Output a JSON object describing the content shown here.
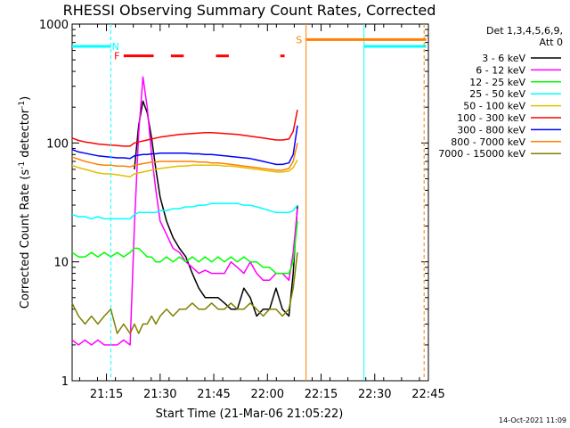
{
  "chart_data": {
    "type": "line",
    "title": "RHESSI Observing Summary Count Rates, Corrected",
    "xlabel": "Start Time (21-Mar-06 21:05:22)",
    "ylabel_main": "Corrected Count Rate (s",
    "ylabel_sup1": "-1",
    "ylabel_mid": " detector",
    "ylabel_sup2": "-1",
    "ylabel_end": ")",
    "y_scale": "log",
    "ylim": [
      1,
      1000
    ],
    "xlim": [
      21.09,
      22.75
    ],
    "x_ticks": [
      {
        "x": 21.25,
        "label": "21:15"
      },
      {
        "x": 21.5,
        "label": "21:30"
      },
      {
        "x": 21.75,
        "label": "21:45"
      },
      {
        "x": 22.0,
        "label": "22:00"
      },
      {
        "x": 22.25,
        "label": "22:15"
      },
      {
        "x": 22.5,
        "label": "22:30"
      },
      {
        "x": 22.75,
        "label": "22:45"
      }
    ],
    "y_ticks": [
      {
        "y": 1,
        "label": "1"
      },
      {
        "y": 10,
        "label": "10"
      },
      {
        "y": 100,
        "label": "100"
      },
      {
        "y": 1000,
        "label": "1000"
      }
    ],
    "legend_header": [
      "Det 1,3,4,5,6,9,",
      "Att 0"
    ],
    "series": [
      {
        "name": "3 - 6 keV",
        "color": "#000000",
        "x": [
          21.09,
          21.12,
          21.15,
          21.18,
          21.21,
          21.24,
          21.27,
          21.3,
          21.33,
          21.36,
          21.38,
          21.4,
          21.42,
          21.44,
          21.46,
          21.48,
          21.5,
          21.53,
          21.56,
          21.59,
          21.62,
          21.65,
          21.68,
          21.71,
          21.74,
          21.77,
          21.8,
          21.83,
          21.86,
          21.89,
          21.92,
          21.95,
          21.98,
          22.01,
          22.04,
          22.07,
          22.1,
          22.12,
          22.14
        ],
        "y": [
          null,
          null,
          null,
          null,
          null,
          null,
          null,
          null,
          null,
          null,
          60,
          140,
          225,
          180,
          110,
          60,
          35,
          22,
          16,
          13,
          11,
          8,
          6,
          5,
          5,
          5,
          4.5,
          4,
          4,
          6,
          5,
          3.5,
          4,
          4,
          6,
          4,
          3.5,
          8,
          30
        ]
      },
      {
        "name": "6 - 12 keV",
        "color": "#ff00ff",
        "x": [
          21.09,
          21.12,
          21.15,
          21.18,
          21.21,
          21.24,
          21.27,
          21.3,
          21.33,
          21.36,
          21.38,
          21.4,
          21.42,
          21.44,
          21.46,
          21.48,
          21.5,
          21.53,
          21.56,
          21.59,
          21.62,
          21.65,
          21.68,
          21.71,
          21.74,
          21.77,
          21.8,
          21.83,
          21.86,
          21.89,
          21.92,
          21.95,
          21.98,
          22.01,
          22.04,
          22.07,
          22.1,
          22.12,
          22.14
        ],
        "y": [
          2.2,
          2.0,
          2.2,
          2.0,
          2.2,
          2.0,
          2.0,
          2.0,
          2.2,
          2.0,
          20,
          120,
          360,
          200,
          80,
          40,
          22,
          17,
          13,
          12,
          10,
          9,
          8,
          8.5,
          8,
          8,
          8,
          10,
          9,
          8,
          10,
          8,
          7,
          7,
          8,
          8,
          7,
          12,
          28
        ]
      },
      {
        "name": "12 - 25 keV",
        "color": "#00ff00",
        "x": [
          21.09,
          21.12,
          21.15,
          21.18,
          21.21,
          21.24,
          21.27,
          21.3,
          21.33,
          21.36,
          21.38,
          21.4,
          21.42,
          21.44,
          21.46,
          21.48,
          21.5,
          21.53,
          21.56,
          21.59,
          21.62,
          21.65,
          21.68,
          21.71,
          21.74,
          21.77,
          21.8,
          21.83,
          21.86,
          21.89,
          21.92,
          21.95,
          21.98,
          22.01,
          22.04,
          22.07,
          22.1,
          22.12,
          22.14
        ],
        "y": [
          12,
          11,
          11,
          12,
          11,
          12,
          11,
          12,
          11,
          12,
          13,
          13,
          12,
          11,
          11,
          10,
          10,
          11,
          10,
          11,
          10,
          11,
          10,
          11,
          10,
          11,
          10,
          11,
          10,
          11,
          10,
          10,
          9,
          9,
          8,
          8,
          8,
          10,
          22
        ]
      },
      {
        "name": "25 - 50 keV",
        "color": "#00ffff",
        "x": [
          21.09,
          21.12,
          21.15,
          21.18,
          21.21,
          21.24,
          21.27,
          21.3,
          21.33,
          21.36,
          21.38,
          21.4,
          21.42,
          21.44,
          21.46,
          21.48,
          21.5,
          21.53,
          21.56,
          21.59,
          21.62,
          21.65,
          21.68,
          21.71,
          21.74,
          21.77,
          21.8,
          21.83,
          21.86,
          21.89,
          21.92,
          21.95,
          21.98,
          22.01,
          22.04,
          22.07,
          22.1,
          22.12,
          22.14
        ],
        "y": [
          25,
          24,
          24,
          23,
          24,
          23,
          23,
          23,
          23,
          23,
          25,
          26,
          26,
          26,
          26,
          26,
          27,
          27,
          28,
          28,
          29,
          29,
          30,
          30,
          31,
          31,
          31,
          31,
          31,
          30,
          30,
          29,
          28,
          27,
          26,
          26,
          26,
          27,
          30
        ]
      },
      {
        "name": "50 - 100 keV",
        "color": "#e0c000",
        "x": [
          21.09,
          21.12,
          21.15,
          21.18,
          21.21,
          21.24,
          21.27,
          21.3,
          21.33,
          21.36,
          21.38,
          21.4,
          21.42,
          21.44,
          21.46,
          21.48,
          21.5,
          21.53,
          21.56,
          21.59,
          21.62,
          21.65,
          21.68,
          21.71,
          21.74,
          21.77,
          21.8,
          21.83,
          21.86,
          21.89,
          21.92,
          21.95,
          21.98,
          22.01,
          22.04,
          22.07,
          22.1,
          22.12,
          22.14
        ],
        "y": [
          65,
          62,
          60,
          58,
          56,
          55,
          55,
          54,
          53,
          52,
          55,
          56,
          57,
          58,
          59,
          60,
          61,
          62,
          63,
          64,
          64,
          65,
          65,
          65,
          65,
          65,
          64,
          64,
          63,
          62,
          61,
          60,
          59,
          58,
          57,
          57,
          58,
          62,
          72
        ]
      },
      {
        "name": "100 - 300 keV",
        "color": "#ff0000",
        "x": [
          21.09,
          21.12,
          21.15,
          21.18,
          21.21,
          21.24,
          21.27,
          21.3,
          21.33,
          21.36,
          21.38,
          21.4,
          21.42,
          21.44,
          21.46,
          21.48,
          21.5,
          21.53,
          21.56,
          21.59,
          21.62,
          21.65,
          21.68,
          21.71,
          21.74,
          21.77,
          21.8,
          21.83,
          21.86,
          21.89,
          21.92,
          21.95,
          21.98,
          22.01,
          22.04,
          22.07,
          22.1,
          22.12,
          22.14
        ],
        "y": [
          110,
          105,
          102,
          100,
          98,
          97,
          96,
          95,
          94,
          94,
          100,
          102,
          104,
          106,
          108,
          110,
          112,
          114,
          116,
          118,
          119,
          120,
          121,
          122,
          122,
          121,
          120,
          119,
          118,
          116,
          114,
          112,
          110,
          108,
          106,
          106,
          108,
          125,
          190
        ]
      },
      {
        "name": "300 - 800 keV",
        "color": "#0000ff",
        "x": [
          21.09,
          21.12,
          21.15,
          21.18,
          21.21,
          21.24,
          21.27,
          21.3,
          21.33,
          21.36,
          21.38,
          21.4,
          21.42,
          21.44,
          21.46,
          21.48,
          21.5,
          21.53,
          21.56,
          21.59,
          21.62,
          21.65,
          21.68,
          21.71,
          21.74,
          21.77,
          21.8,
          21.83,
          21.86,
          21.89,
          21.92,
          21.95,
          21.98,
          22.01,
          22.04,
          22.07,
          22.1,
          22.12,
          22.14
        ],
        "y": [
          88,
          84,
          82,
          80,
          78,
          77,
          76,
          75,
          75,
          74,
          78,
          79,
          80,
          80,
          81,
          81,
          82,
          82,
          82,
          82,
          82,
          81,
          81,
          80,
          80,
          79,
          78,
          77,
          76,
          75,
          74,
          72,
          70,
          68,
          66,
          66,
          68,
          80,
          140
        ]
      },
      {
        "name": "800 - 7000 keV",
        "color": "#ff8000",
        "x": [
          21.09,
          21.12,
          21.15,
          21.18,
          21.21,
          21.24,
          21.27,
          21.3,
          21.33,
          21.36,
          21.38,
          21.4,
          21.42,
          21.44,
          21.46,
          21.48,
          21.5,
          21.53,
          21.56,
          21.59,
          21.62,
          21.65,
          21.68,
          21.71,
          21.74,
          21.77,
          21.8,
          21.83,
          21.86,
          21.89,
          21.92,
          21.95,
          21.98,
          22.01,
          22.04,
          22.07,
          22.1,
          22.12,
          22.14
        ],
        "y": [
          76,
          73,
          70,
          68,
          66,
          65,
          65,
          64,
          64,
          63,
          65,
          66,
          67,
          68,
          69,
          69,
          70,
          70,
          70,
          70,
          70,
          70,
          69,
          69,
          68,
          68,
          67,
          66,
          65,
          64,
          63,
          62,
          61,
          60,
          59,
          59,
          61,
          70,
          100
        ]
      },
      {
        "name": "7000 - 15000 keV",
        "color": "#808000",
        "x": [
          21.09,
          21.12,
          21.15,
          21.18,
          21.21,
          21.24,
          21.27,
          21.3,
          21.33,
          21.36,
          21.38,
          21.4,
          21.42,
          21.44,
          21.46,
          21.48,
          21.5,
          21.53,
          21.56,
          21.59,
          21.62,
          21.65,
          21.68,
          21.71,
          21.74,
          21.77,
          21.8,
          21.83,
          21.86,
          21.89,
          21.92,
          21.95,
          21.98,
          22.01,
          22.04,
          22.07,
          22.1,
          22.12,
          22.14
        ],
        "y": [
          4.5,
          3.5,
          3.0,
          3.5,
          3.0,
          3.5,
          4,
          2.5,
          3,
          2.5,
          3,
          2.5,
          3,
          3,
          3.5,
          3,
          3.5,
          4,
          3.5,
          4,
          4,
          4.5,
          4,
          4,
          4.5,
          4,
          4,
          4.5,
          4,
          4,
          4.5,
          4,
          3.5,
          4,
          4,
          3.5,
          4,
          6,
          12
        ]
      }
    ],
    "markers": [
      {
        "label": "N",
        "color": "#00ffff"
      },
      {
        "label": "F",
        "color": "#ff0000"
      },
      {
        "label": "S",
        "color": "#ff8000"
      }
    ],
    "footer_date": "14-Oct-2021 11:09"
  }
}
